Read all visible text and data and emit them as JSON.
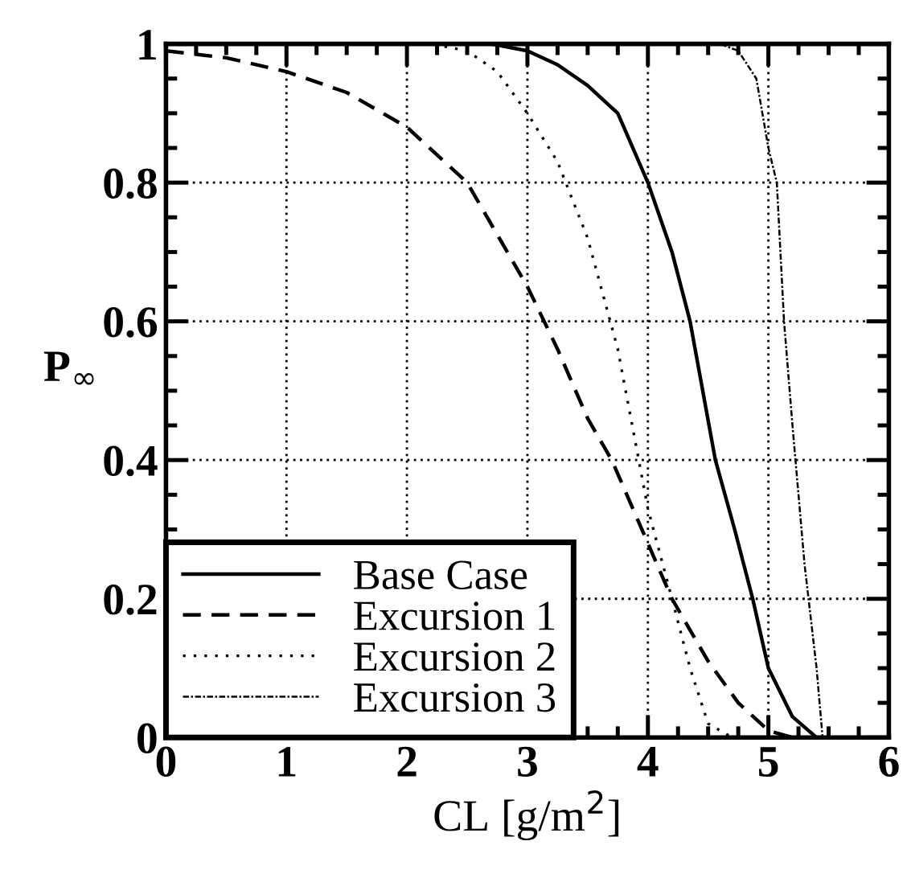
{
  "chart_data": {
    "type": "line",
    "xlabel": "CL [g/m$^{2}$]",
    "ylabel": "P$_{∞}$",
    "xlim": [
      0,
      6
    ],
    "ylim": [
      0,
      1
    ],
    "xticks": [
      0,
      1,
      2,
      3,
      4,
      5,
      6
    ],
    "yticks": [
      0,
      0.2,
      0.4,
      0.6,
      0.8,
      1
    ],
    "grid": true,
    "legend": "bottom left",
    "series": [
      {
        "name": "Base Case",
        "color": "#000000",
        "line_style": "solid",
        "x": [
          0,
          1,
          2,
          2.7,
          3,
          3.25,
          3.5,
          3.75,
          4,
          4.2,
          4.35,
          4.56,
          4.72,
          4.87,
          5,
          5.2,
          5.4
        ],
        "values": [
          1,
          1,
          1,
          1,
          0.99,
          0.97,
          0.94,
          0.9,
          0.8,
          0.7,
          0.6,
          0.4,
          0.3,
          0.2,
          0.1,
          0.03,
          0
        ]
      },
      {
        "name": "Excursion 1",
        "color": "#000000",
        "line_style": "dashed",
        "x": [
          0,
          0.5,
          1,
          1.5,
          2,
          2.5,
          3,
          3.25,
          3.5,
          3.7,
          4,
          4.2,
          4.5,
          4.75,
          5,
          5.2
        ],
        "values": [
          0.99,
          0.98,
          0.96,
          0.93,
          0.88,
          0.8,
          0.65,
          0.56,
          0.46,
          0.4,
          0.28,
          0.2,
          0.11,
          0.05,
          0.01,
          0
        ]
      },
      {
        "name": "Excursion 2",
        "color": "#000000",
        "line_style": "dotted",
        "x": [
          0,
          1,
          2,
          2.2,
          2.5,
          2.75,
          3,
          3.25,
          3.5,
          3.75,
          3.87,
          4,
          4.2,
          4.35,
          4.5,
          4.7
        ],
        "values": [
          1,
          1,
          1,
          1,
          0.99,
          0.96,
          0.9,
          0.83,
          0.72,
          0.56,
          0.45,
          0.33,
          0.2,
          0.1,
          0.02,
          0
        ]
      },
      {
        "name": "Excursion 3",
        "color": "#000000",
        "line_style": "dashdot",
        "x": [
          0,
          1,
          2,
          3,
          4,
          4.6,
          4.75,
          4.9,
          5,
          5.07,
          5.13,
          5.2,
          5.3,
          5.4,
          5.45
        ],
        "values": [
          1,
          1,
          1,
          1,
          1,
          1,
          0.99,
          0.95,
          0.85,
          0.8,
          0.6,
          0.45,
          0.25,
          0.1,
          0
        ]
      }
    ]
  }
}
